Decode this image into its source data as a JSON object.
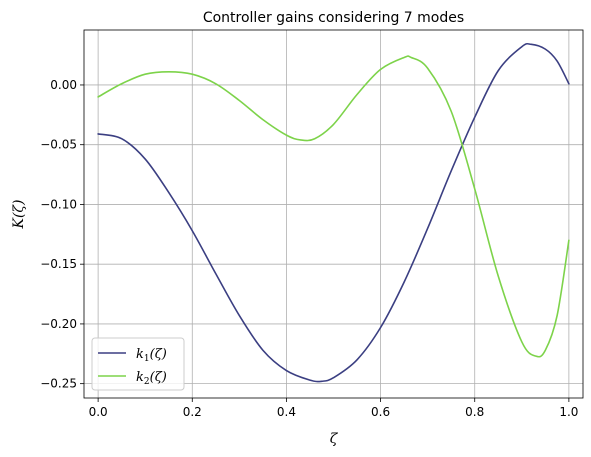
{
  "chart_data": {
    "type": "line",
    "title": "Controller gains considering 7 modes",
    "xlabel": "ζ",
    "ylabel": "K(ζ)",
    "xlim": [
      -0.03,
      1.03
    ],
    "ylim": [
      -0.262,
      0.046
    ],
    "xticks": [
      0.0,
      0.2,
      0.4,
      0.6,
      0.8,
      1.0
    ],
    "xtick_labels": [
      "0.0",
      "0.2",
      "0.4",
      "0.6",
      "0.8",
      "1.0"
    ],
    "yticks": [
      0.0,
      -0.05,
      -0.1,
      -0.15,
      -0.2,
      -0.25
    ],
    "ytick_labels": [
      "0.00",
      "−0.05",
      "−0.10",
      "−0.15",
      "−0.20",
      "−0.25"
    ],
    "grid": true,
    "legend_position": "lower-left",
    "series": [
      {
        "name": "k1(ζ)",
        "color": "#3b3f82",
        "x": [
          0.0,
          0.05,
          0.1,
          0.15,
          0.2,
          0.25,
          0.3,
          0.35,
          0.4,
          0.45,
          0.475,
          0.5,
          0.55,
          0.6,
          0.65,
          0.7,
          0.75,
          0.8,
          0.85,
          0.9,
          0.92,
          0.95,
          0.975,
          1.0
        ],
        "y": [
          -0.041,
          -0.045,
          -0.062,
          -0.09,
          -0.122,
          -0.158,
          -0.193,
          -0.222,
          -0.239,
          -0.247,
          -0.248,
          -0.245,
          -0.23,
          -0.203,
          -0.165,
          -0.12,
          -0.072,
          -0.027,
          0.012,
          0.032,
          0.034,
          0.03,
          0.02,
          0.001
        ]
      },
      {
        "name": "k2(ζ)",
        "color": "#7dd34a",
        "x": [
          0.0,
          0.05,
          0.1,
          0.15,
          0.2,
          0.25,
          0.3,
          0.35,
          0.4,
          0.43,
          0.46,
          0.5,
          0.55,
          0.6,
          0.65,
          0.665,
          0.7,
          0.75,
          0.8,
          0.85,
          0.9,
          0.93,
          0.95,
          0.975,
          1.0
        ],
        "y": [
          -0.01,
          0.001,
          0.009,
          0.011,
          0.009,
          0.001,
          -0.013,
          -0.029,
          -0.042,
          -0.046,
          -0.045,
          -0.033,
          -0.008,
          0.013,
          0.023,
          0.023,
          0.014,
          -0.022,
          -0.087,
          -0.16,
          -0.215,
          -0.227,
          -0.222,
          -0.193,
          -0.13
        ]
      }
    ],
    "legend": [
      {
        "label": "k",
        "sub": "1",
        "arg": "(ζ)"
      },
      {
        "label": "k",
        "sub": "2",
        "arg": "(ζ)"
      }
    ]
  }
}
